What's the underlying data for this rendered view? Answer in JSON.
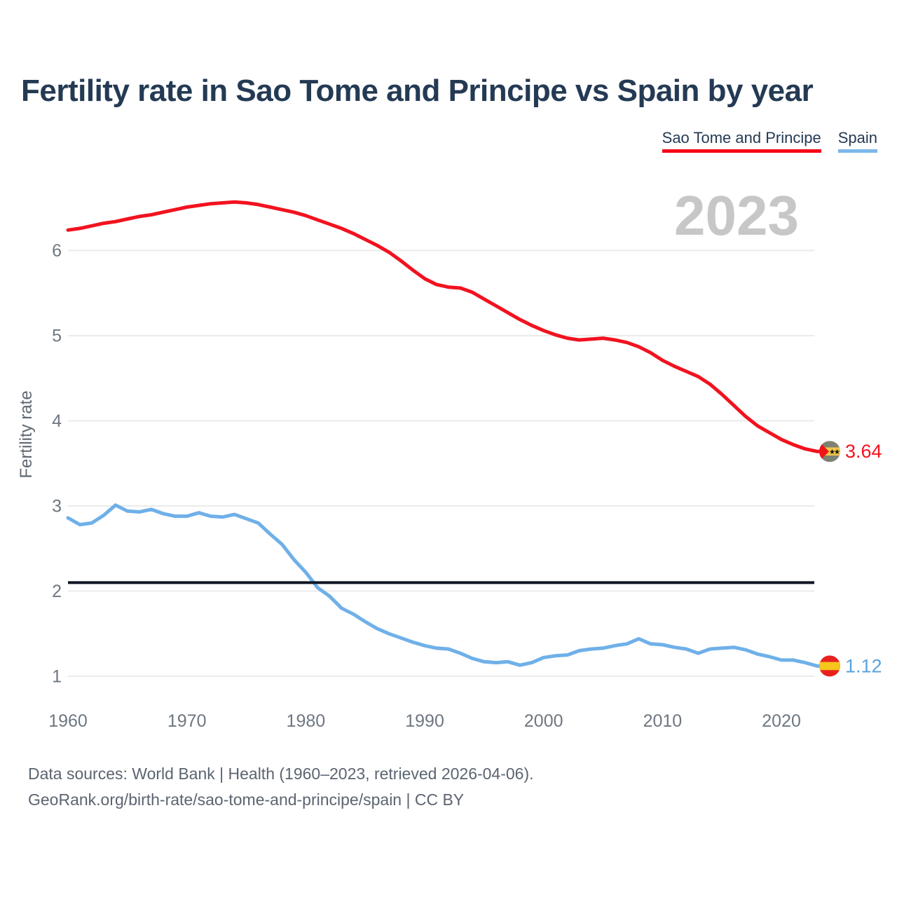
{
  "header": {
    "title": "Fertility rate in Sao Tome and Principe vs Spain by year"
  },
  "legend": {
    "items": [
      {
        "label": "Sao Tome and Principe",
        "color": "#f50717"
      },
      {
        "label": "Spain",
        "color": "#7cb8ea"
      }
    ]
  },
  "watermark": {
    "text": "2023",
    "color": "#c7c7c7"
  },
  "footer": {
    "line1": "Data sources: World Bank | Health (1960–2023, retrieved 2026-04-06).",
    "line2": "GeoRank.org/birth-rate/sao-tome-and-principe/spain | CC BY"
  },
  "chart_data": {
    "type": "line",
    "title": "Fertility rate in Sao Tome and Principe vs Spain by year",
    "xlabel": "",
    "ylabel": "Fertility rate",
    "xlim": [
      1960,
      2023
    ],
    "ylim": [
      0.6,
      6.9
    ],
    "grid": "horizontal-only",
    "legend_position": "top-right",
    "yticks": [
      1,
      2,
      3,
      4,
      5,
      6
    ],
    "xticks": [
      1960,
      1970,
      1980,
      1990,
      2000,
      2010,
      2020
    ],
    "reference_line": {
      "value": 2.1,
      "color": "#0e1624"
    },
    "x": [
      1960,
      1961,
      1962,
      1963,
      1964,
      1965,
      1966,
      1967,
      1968,
      1969,
      1970,
      1971,
      1972,
      1973,
      1974,
      1975,
      1976,
      1977,
      1978,
      1979,
      1980,
      1981,
      1982,
      1983,
      1984,
      1985,
      1986,
      1987,
      1988,
      1989,
      1990,
      1991,
      1992,
      1993,
      1994,
      1995,
      1996,
      1997,
      1998,
      1999,
      2000,
      2001,
      2002,
      2003,
      2004,
      2005,
      2006,
      2007,
      2008,
      2009,
      2010,
      2011,
      2012,
      2013,
      2014,
      2015,
      2016,
      2017,
      2018,
      2019,
      2020,
      2021,
      2022,
      2023
    ],
    "series": [
      {
        "name": "Sao Tome and Principe",
        "color": "#f2121f",
        "label_color": "#f2121f",
        "end_label": "3.64",
        "end_value": 3.64,
        "flag_icon": "sao-tome-and-principe-flag",
        "values": [
          6.24,
          6.26,
          6.29,
          6.32,
          6.34,
          6.37,
          6.4,
          6.42,
          6.45,
          6.48,
          6.51,
          6.53,
          6.55,
          6.56,
          6.57,
          6.56,
          6.54,
          6.51,
          6.48,
          6.45,
          6.41,
          6.36,
          6.31,
          6.26,
          6.2,
          6.13,
          6.06,
          5.98,
          5.88,
          5.77,
          5.67,
          5.6,
          5.57,
          5.56,
          5.51,
          5.43,
          5.35,
          5.27,
          5.19,
          5.12,
          5.06,
          5.01,
          4.97,
          4.95,
          4.96,
          4.97,
          4.95,
          4.92,
          4.87,
          4.8,
          4.71,
          4.64,
          4.58,
          4.52,
          4.43,
          4.31,
          4.18,
          4.05,
          3.94,
          3.86,
          3.78,
          3.72,
          3.67,
          3.64
        ]
      },
      {
        "name": "Spain",
        "color": "#6fb0e8",
        "label_color": "#58a2de",
        "end_label": "1.12",
        "end_value": 1.12,
        "flag_icon": "spain-flag",
        "values": [
          2.86,
          2.78,
          2.8,
          2.89,
          3.01,
          2.94,
          2.93,
          2.96,
          2.91,
          2.88,
          2.88,
          2.92,
          2.88,
          2.87,
          2.9,
          2.85,
          2.8,
          2.67,
          2.55,
          2.37,
          2.22,
          2.04,
          1.94,
          1.8,
          1.73,
          1.64,
          1.56,
          1.5,
          1.45,
          1.4,
          1.36,
          1.33,
          1.32,
          1.27,
          1.21,
          1.17,
          1.16,
          1.17,
          1.13,
          1.16,
          1.22,
          1.24,
          1.25,
          1.3,
          1.32,
          1.33,
          1.36,
          1.38,
          1.44,
          1.38,
          1.37,
          1.34,
          1.32,
          1.27,
          1.32,
          1.33,
          1.34,
          1.31,
          1.26,
          1.23,
          1.19,
          1.19,
          1.16,
          1.12
        ]
      }
    ]
  }
}
